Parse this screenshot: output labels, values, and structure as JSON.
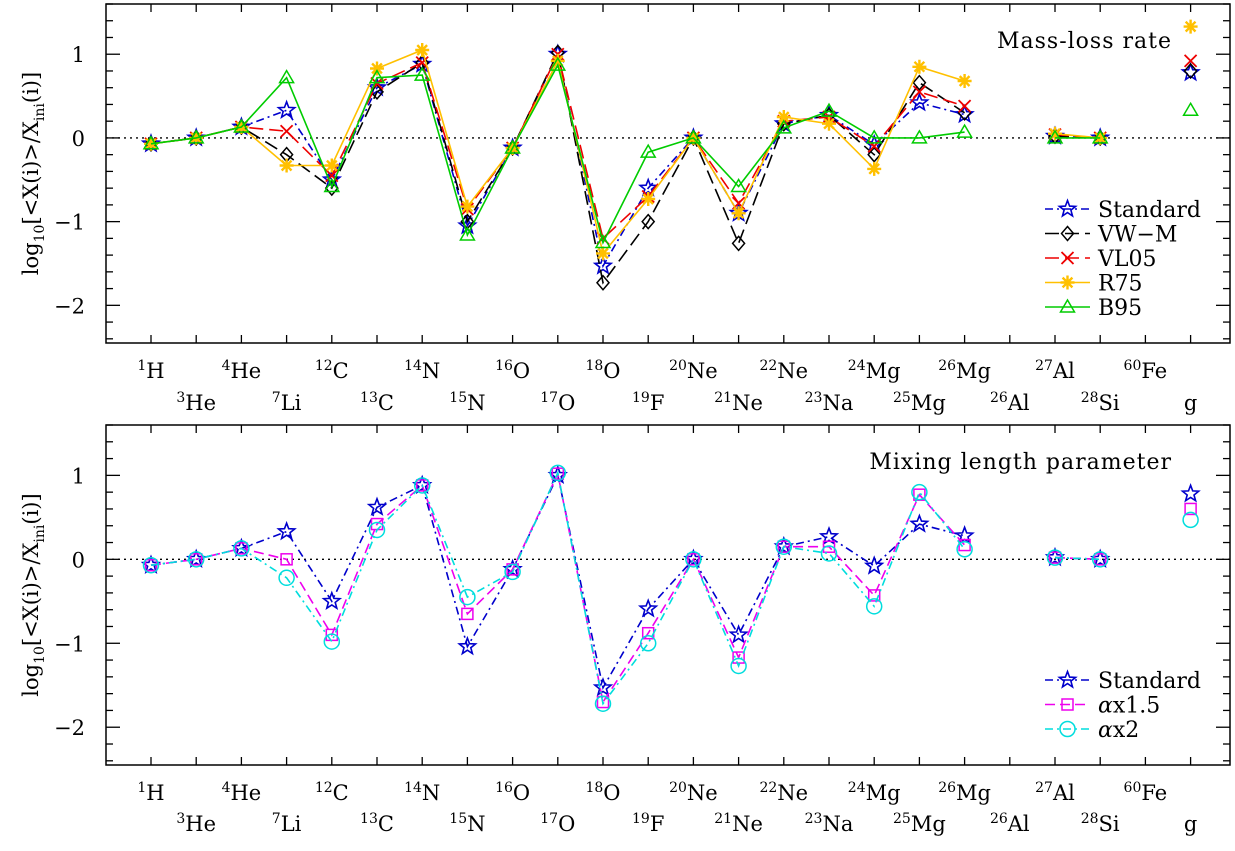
{
  "isotopes": [
    "1H",
    "3He",
    "4He",
    "7Li",
    "12C",
    "13C",
    "14N",
    "15N",
    "16O",
    "17O",
    "18O",
    "19F",
    "20Ne",
    "21Ne",
    "22Ne",
    "23Na",
    "24Mg",
    "25Mg",
    "26Mg",
    "26Al",
    "27Al",
    "28Si",
    "60Fe",
    "g"
  ],
  "isotope_labels": [
    {
      "mass": "1",
      "sym": "H"
    },
    {
      "mass": "3",
      "sym": "He"
    },
    {
      "mass": "4",
      "sym": "He"
    },
    {
      "mass": "7",
      "sym": "Li"
    },
    {
      "mass": "12",
      "sym": "C"
    },
    {
      "mass": "13",
      "sym": "C"
    },
    {
      "mass": "14",
      "sym": "N"
    },
    {
      "mass": "15",
      "sym": "N"
    },
    {
      "mass": "16",
      "sym": "O"
    },
    {
      "mass": "17",
      "sym": "O"
    },
    {
      "mass": "18",
      "sym": "O"
    },
    {
      "mass": "19",
      "sym": "F"
    },
    {
      "mass": "20",
      "sym": "Ne"
    },
    {
      "mass": "21",
      "sym": "Ne"
    },
    {
      "mass": "22",
      "sym": "Ne"
    },
    {
      "mass": "23",
      "sym": "Na"
    },
    {
      "mass": "24",
      "sym": "Mg"
    },
    {
      "mass": "25",
      "sym": "Mg"
    },
    {
      "mass": "26",
      "sym": "Mg"
    },
    {
      "mass": "26",
      "sym": "Al"
    },
    {
      "mass": "27",
      "sym": "Al"
    },
    {
      "mass": "28",
      "sym": "Si"
    },
    {
      "mass": "60",
      "sym": "Fe"
    },
    {
      "mass": "",
      "sym": "g"
    }
  ],
  "ylabel": {
    "pre": "log",
    "sub1": "10",
    "mid": "[<X(i)>/X",
    "sub2": "ini",
    "post": "(i)]"
  },
  "chart_data": [
    {
      "type": "line",
      "title": "Mass-loss rate",
      "ylim": [
        -2.45,
        1.6
      ],
      "yticks": [
        -2,
        -1,
        0,
        1
      ],
      "zero_line": true,
      "legend_position": "bottom-right",
      "series": [
        {
          "name": "Standard",
          "color": "#0000cc",
          "marker": "star",
          "dash": "8 4 2 4",
          "values": [
            -0.07,
            0.0,
            0.13,
            0.33,
            -0.5,
            0.6,
            0.88,
            -1.05,
            -0.12,
            1.0,
            -1.53,
            -0.6,
            0.0,
            -0.9,
            0.17,
            0.27,
            -0.08,
            0.42,
            0.28,
            null,
            0.02,
            0.0,
            null,
            0.78
          ]
        },
        {
          "name": "VW-M",
          "color": "#000000",
          "marker": "diamond",
          "dash": "14 6",
          "values": [
            -0.07,
            0.0,
            0.13,
            -0.2,
            -0.6,
            0.55,
            0.9,
            -1.0,
            -0.12,
            1.02,
            -1.73,
            -1.0,
            0.0,
            -1.26,
            0.17,
            0.27,
            -0.2,
            0.66,
            0.3,
            null,
            0.02,
            0.0,
            null,
            0.8
          ]
        },
        {
          "name": "VL05",
          "color": "#ee0000",
          "marker": "cross",
          "dash": "14 6",
          "values": [
            -0.07,
            0.0,
            0.13,
            0.08,
            -0.45,
            0.65,
            0.9,
            -0.85,
            -0.12,
            1.0,
            -1.2,
            -0.7,
            0.0,
            -0.78,
            0.2,
            0.25,
            -0.1,
            0.55,
            0.38,
            null,
            0.04,
            0.0,
            null,
            0.92
          ]
        },
        {
          "name": "R75",
          "color": "#ffc000",
          "marker": "asterisk",
          "dash": "",
          "values": [
            -0.07,
            0.0,
            0.13,
            -0.33,
            -0.33,
            0.83,
            1.05,
            -0.82,
            -0.12,
            0.92,
            -1.38,
            -0.73,
            0.0,
            -0.9,
            0.25,
            0.17,
            -0.37,
            0.85,
            0.68,
            null,
            0.05,
            0.0,
            null,
            1.33
          ]
        },
        {
          "name": "B95",
          "color": "#00cc00",
          "marker": "triangle",
          "dash": "",
          "values": [
            -0.07,
            0.0,
            0.13,
            0.72,
            -0.58,
            0.72,
            0.75,
            -1.16,
            -0.12,
            0.87,
            -1.25,
            -0.17,
            0.0,
            -0.58,
            0.12,
            0.32,
            0.0,
            0.0,
            0.07,
            null,
            0.0,
            0.0,
            null,
            0.33
          ]
        }
      ]
    },
    {
      "type": "line",
      "title": "Mixing length parameter",
      "ylim": [
        -2.45,
        1.6
      ],
      "yticks": [
        -2,
        -1,
        0,
        1
      ],
      "zero_line": true,
      "legend_position": "bottom-right",
      "series": [
        {
          "name": "Standard",
          "color": "#0000cc",
          "marker": "star",
          "dash": "8 4 2 4",
          "values": [
            -0.07,
            0.0,
            0.13,
            0.33,
            -0.5,
            0.62,
            0.88,
            -1.04,
            -0.12,
            1.0,
            -1.53,
            -0.59,
            0.0,
            -0.9,
            0.15,
            0.27,
            -0.08,
            0.42,
            0.28,
            null,
            0.02,
            0.0,
            null,
            0.78
          ]
        },
        {
          "name": "αx1.5",
          "color": "#ee00ee",
          "marker": "square",
          "dash": "10 5",
          "values": [
            -0.07,
            0.0,
            0.13,
            0.0,
            -0.9,
            0.42,
            0.88,
            -0.65,
            -0.12,
            1.02,
            -1.7,
            -0.88,
            0.0,
            -1.17,
            0.15,
            0.15,
            -0.43,
            0.77,
            0.17,
            null,
            0.02,
            0.0,
            null,
            0.6
          ]
        },
        {
          "name": "αx2",
          "color": "#00dddd",
          "marker": "circle",
          "dash": "8 4 2 4",
          "values": [
            -0.07,
            0.0,
            0.13,
            -0.22,
            -0.98,
            0.35,
            0.88,
            -0.45,
            -0.15,
            1.03,
            -1.72,
            -1.0,
            0.0,
            -1.27,
            0.15,
            0.07,
            -0.56,
            0.8,
            0.12,
            null,
            0.02,
            0.0,
            null,
            0.47
          ]
        }
      ]
    }
  ]
}
